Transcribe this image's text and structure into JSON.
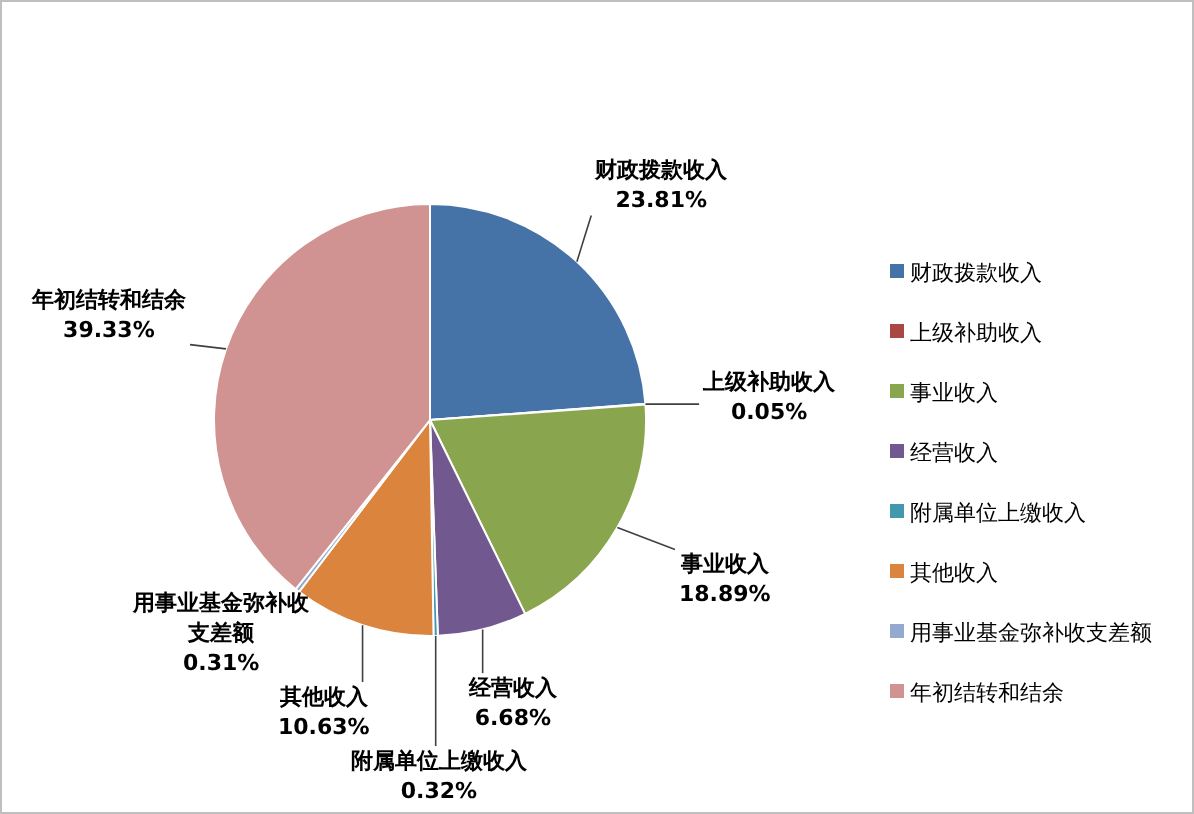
{
  "chart_data": {
    "type": "pie",
    "categories": [
      "财政拨款收入",
      "上级补助收入",
      "事业收入",
      "经营收入",
      "附属单位上缴收入",
      "其他收入",
      "用事业基金弥补收支差额",
      "年初结转和结余"
    ],
    "values": [
      23.81,
      0.05,
      18.89,
      6.68,
      0.32,
      10.63,
      0.31,
      39.33
    ],
    "value_labels": [
      "23.81%",
      "0.05%",
      "18.89%",
      "6.68%",
      "0.32%",
      "10.63%",
      "0.31%",
      "39.33%"
    ],
    "colors": [
      "#4572a7",
      "#aa4643",
      "#89a54e",
      "#71588f",
      "#4198af",
      "#db843d",
      "#93a9cf",
      "#d19392"
    ],
    "legend": "right"
  }
}
